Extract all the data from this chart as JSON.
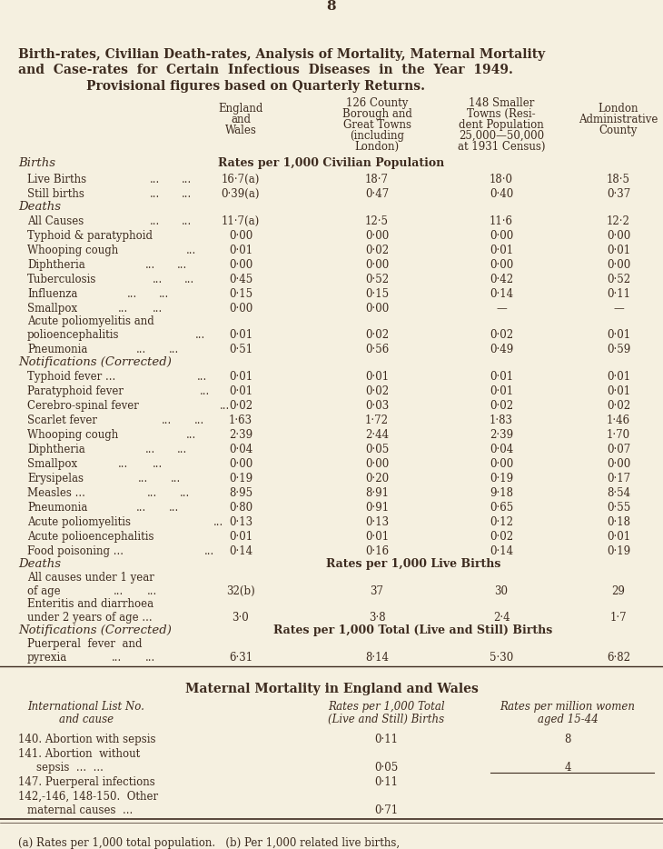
{
  "bg_color": "#f5f0e0",
  "text_color": "#3d2b1f",
  "page_number": "8",
  "title_line1": "Birth-rates, Civilian Death-rates, Analysis of Mortality, Maternal Mortality",
  "title_line2": "and  Case-rates  for  Certain  Infectious  Diseases  in  the  Year  1949.",
  "title_line3": "Provisional figures based on Quarterly Returns.",
  "footnote": "(a) Rates per 1,000 total population.   (b) Per 1,000 related live births,"
}
